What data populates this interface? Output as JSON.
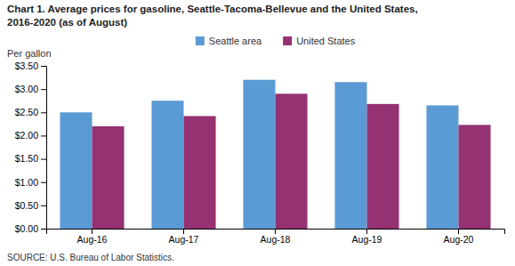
{
  "chart_data": {
    "type": "bar",
    "title": "Chart 1. Average prices for gasoline, Seattle-Tacoma-Bellevue and the United States,",
    "subtitle": "2016-2020  (as of August)",
    "ylabel": "Per gallon",
    "source": "SOURCE: U.S. Bureau of Labor Statistics.",
    "categories": [
      "Aug-16",
      "Aug-17",
      "Aug-18",
      "Aug-19",
      "Aug-20"
    ],
    "series": [
      {
        "name": "Seattle area",
        "color": "#5B9BD5",
        "values": [
          2.5,
          2.75,
          3.2,
          3.15,
          2.65
        ]
      },
      {
        "name": "United States",
        "color": "#953271",
        "values": [
          2.2,
          2.42,
          2.9,
          2.68,
          2.23
        ]
      }
    ],
    "ylim": [
      0,
      3.5
    ],
    "yticks": [
      {
        "value": 0,
        "label": "$0.00"
      },
      {
        "value": 0.5,
        "label": "$0.50"
      },
      {
        "value": 1,
        "label": "$1.00"
      },
      {
        "value": 1.5,
        "label": "$1.50"
      },
      {
        "value": 2,
        "label": "$2.00"
      },
      {
        "value": 2.5,
        "label": "$2.50"
      },
      {
        "value": 3,
        "label": "$3.00"
      },
      {
        "value": 3.5,
        "label": "$3.50"
      }
    ],
    "grid": false,
    "legend": "top"
  }
}
